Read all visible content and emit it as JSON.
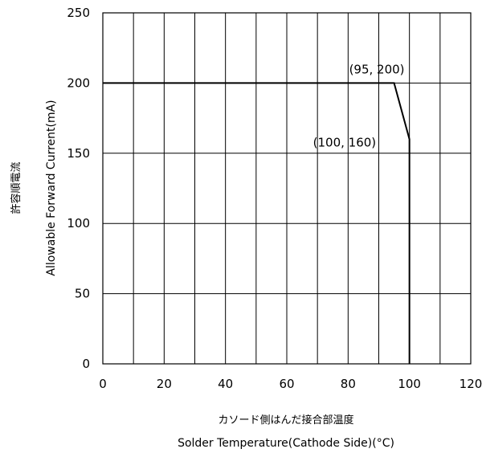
{
  "chart_data": {
    "type": "line",
    "title": "",
    "xlabel_jp": "カソード側はんだ接合部温度",
    "xlabel": "Solder Temperature(Cathode Side)(°C)",
    "ylabel_jp": "許容順電流",
    "ylabel": "Allowable Forward Current(mA)",
    "xlim": [
      0,
      120
    ],
    "ylim": [
      0,
      250
    ],
    "xticks": [
      "0",
      "20",
      "40",
      "60",
      "80",
      "100",
      "120"
    ],
    "yticks": [
      "0",
      "50",
      "100",
      "150",
      "200",
      "250"
    ],
    "grid": true,
    "series": [
      {
        "x": [
          0,
          95,
          100,
          100
        ],
        "y": [
          200,
          200,
          160,
          0
        ]
      }
    ],
    "annotations": [
      {
        "text": "(95, 200)",
        "x": 95,
        "y": 200
      },
      {
        "text": "(100, 160)",
        "x": 100,
        "y": 160
      }
    ]
  }
}
